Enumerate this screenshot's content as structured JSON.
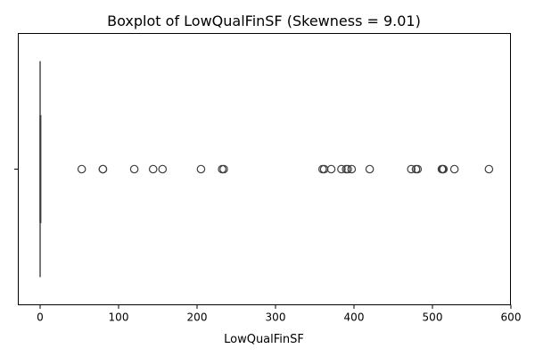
{
  "chart_data": {
    "type": "boxplot",
    "title": "Boxplot of LowQualFinSF (Skewness = 9.01)",
    "xlabel": "LowQualFinSF",
    "ylabel": "",
    "orientation": "horizontal",
    "xlim": [
      -27,
      600
    ],
    "xticks": [
      0,
      100,
      200,
      300,
      400,
      500,
      600
    ],
    "grid": false,
    "box": {
      "min": 0,
      "q1": 0,
      "median": 0,
      "q3": 0,
      "max": 0
    },
    "outliers": [
      53,
      80,
      80,
      120,
      144,
      156,
      205,
      232,
      234,
      360,
      362,
      371,
      384,
      390,
      392,
      397,
      420,
      473,
      479,
      481,
      512,
      513,
      514,
      528,
      572
    ],
    "colors": {
      "box_edge": "#3f3f3f",
      "outlier_edge": "#3f3f3f",
      "axes": "#000000"
    }
  }
}
